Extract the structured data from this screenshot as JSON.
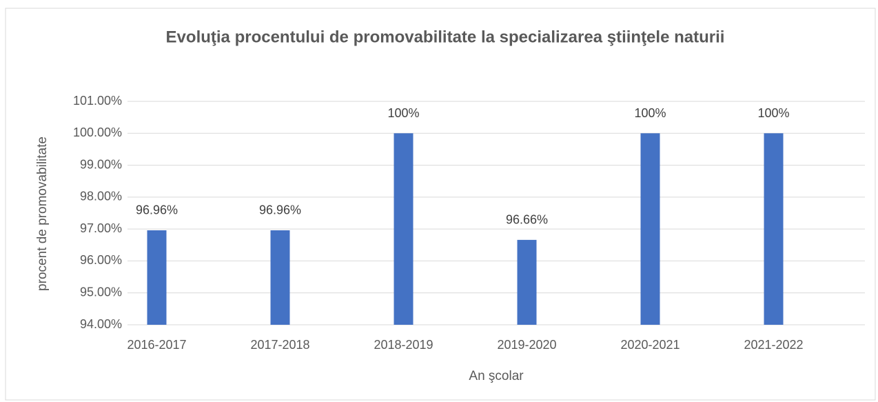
{
  "chart_data": {
    "type": "bar",
    "title": "Evoluţia procentului de promovabilitate la specializarea ştiinţele naturii",
    "x_label": "An şcolar",
    "y_label": "procent de promovabilitate",
    "categories": [
      "2016-2017",
      "2017-2018",
      "2018-2019",
      "2019-2020",
      "2020-2021",
      "2021-2022"
    ],
    "values": [
      96.96,
      96.96,
      100,
      96.66,
      100,
      100
    ],
    "value_labels": [
      "96.96%",
      "96.96%",
      "100%",
      "96.66%",
      "100%",
      "100%"
    ],
    "color": "#4472c4",
    "ylim": [
      94,
      101
    ],
    "yticks": [
      {
        "value": 94,
        "label": "94.00%"
      },
      {
        "value": 95,
        "label": "95.00%"
      },
      {
        "value": 96,
        "label": "96.00%"
      },
      {
        "value": 97,
        "label": "97.00%"
      },
      {
        "value": 98,
        "label": "98.00%"
      },
      {
        "value": 99,
        "label": "99.00%"
      },
      {
        "value": 100,
        "label": "100.00%"
      },
      {
        "value": 101,
        "label": "101.00%"
      }
    ],
    "grid": true
  }
}
